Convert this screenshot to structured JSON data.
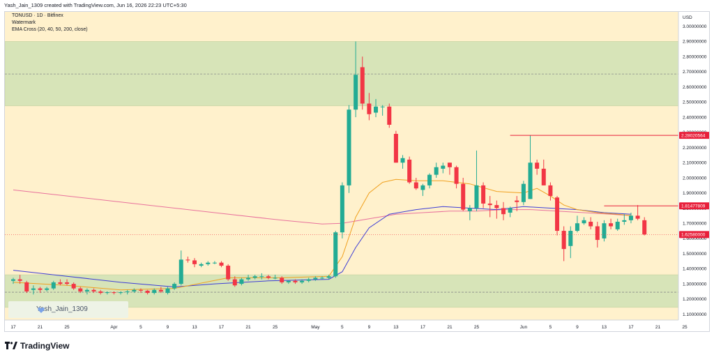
{
  "header": {
    "attribution": "Yash_Jain_1309 created with TradingView.com, Jun 16, 2026 22:23 UTC+5:30"
  },
  "legend": {
    "symbol_line": "TONUSD · 1D · Bitfinex",
    "watermark_line": "Watermark",
    "indicator_line": "EMA Cross (20, 40, 50, 200, close)"
  },
  "watermark": {
    "text": "Yash_Jain_1309"
  },
  "footer": {
    "brand": "TradingView"
  },
  "colors": {
    "up": "#22ab94",
    "down": "#f23645",
    "zone_fill": "#d7e4b8",
    "bg": "#fff1cc",
    "ema_short": "#f0a01e",
    "ema_mid": "#3d3dd6",
    "ema_long": "#e8709c",
    "level": "#e81f3a"
  },
  "chart_data": {
    "type": "candlestick",
    "title": "TONUSD · 1D · Bitfinex",
    "price_axis_label": "USD",
    "y_ticks": [
      "3.00000000",
      "2.90000000",
      "2.80000000",
      "2.70000000",
      "2.60000000",
      "2.50000000",
      "2.40000000",
      "2.30000000",
      "2.20000000",
      "2.10000000",
      "2.00000000",
      "1.90000000",
      "1.80000000",
      "1.70000000",
      "1.60000000",
      "1.50000000",
      "1.40000000",
      "1.30000000",
      "1.20000000",
      "1.10000000"
    ],
    "y_tick_values": [
      3.0,
      2.9,
      2.8,
      2.7,
      2.6,
      2.5,
      2.4,
      2.3,
      2.2,
      2.1,
      2.0,
      1.9,
      1.8,
      1.7,
      1.6,
      1.5,
      1.4,
      1.3,
      1.2,
      1.1
    ],
    "x_labels": [
      {
        "t": 0,
        "label": "17"
      },
      {
        "t": 4,
        "label": "21"
      },
      {
        "t": 8,
        "label": "25"
      },
      {
        "t": 15,
        "label": "Apr"
      },
      {
        "t": 19,
        "label": "5"
      },
      {
        "t": 23,
        "label": "9"
      },
      {
        "t": 27,
        "label": "13"
      },
      {
        "t": 31,
        "label": "17"
      },
      {
        "t": 35,
        "label": "21"
      },
      {
        "t": 39,
        "label": "25"
      },
      {
        "t": 45,
        "label": "May"
      },
      {
        "t": 49,
        "label": "5"
      },
      {
        "t": 53,
        "label": "9"
      },
      {
        "t": 57,
        "label": "13"
      },
      {
        "t": 61,
        "label": "17"
      },
      {
        "t": 65,
        "label": "21"
      },
      {
        "t": 69,
        "label": "25"
      },
      {
        "t": 76,
        "label": "Jun"
      },
      {
        "t": 80,
        "label": "5"
      },
      {
        "t": 84,
        "label": "9"
      },
      {
        "t": 88,
        "label": "13"
      },
      {
        "t": 92,
        "label": "17"
      },
      {
        "t": 96,
        "label": "21"
      },
      {
        "t": 100,
        "label": "25"
      }
    ],
    "zones": [
      {
        "low": 2.475,
        "high": 2.9
      },
      {
        "low": 1.145,
        "high": 1.36
      }
    ],
    "dashed_levels": [
      2.685,
      1.245
    ],
    "price_tags": [
      {
        "value": 2.28020564,
        "label": "2.28020564",
        "from_t": 74
      },
      {
        "value": 1.81477809,
        "label": "1.81477809",
        "from_t": 88
      },
      {
        "value": 1.6258,
        "label": "1.62580000",
        "from_t": null
      }
    ],
    "candles": [
      [
        1.32,
        1.34,
        1.3,
        1.33
      ],
      [
        1.33,
        1.36,
        1.3,
        1.32
      ],
      [
        1.31,
        1.32,
        1.24,
        1.25
      ],
      [
        1.26,
        1.29,
        1.23,
        1.27
      ],
      [
        1.27,
        1.28,
        1.24,
        1.26
      ],
      [
        1.26,
        1.28,
        1.25,
        1.27
      ],
      [
        1.27,
        1.32,
        1.26,
        1.31
      ],
      [
        1.31,
        1.33,
        1.29,
        1.3
      ],
      [
        1.31,
        1.33,
        1.29,
        1.3
      ],
      [
        1.3,
        1.31,
        1.26,
        1.27
      ],
      [
        1.27,
        1.28,
        1.24,
        1.25
      ],
      [
        1.25,
        1.27,
        1.23,
        1.26
      ],
      [
        1.26,
        1.27,
        1.24,
        1.25
      ],
      [
        1.25,
        1.26,
        1.23,
        1.24
      ],
      [
        1.24,
        1.25,
        1.23,
        1.245
      ],
      [
        1.245,
        1.25,
        1.23,
        1.24
      ],
      [
        1.24,
        1.25,
        1.23,
        1.245
      ],
      [
        1.245,
        1.26,
        1.23,
        1.25
      ],
      [
        1.25,
        1.27,
        1.24,
        1.26
      ],
      [
        1.26,
        1.27,
        1.24,
        1.255
      ],
      [
        1.255,
        1.26,
        1.23,
        1.24
      ],
      [
        1.24,
        1.27,
        1.23,
        1.26
      ],
      [
        1.26,
        1.28,
        1.24,
        1.25
      ],
      [
        1.24,
        1.28,
        1.23,
        1.27
      ],
      [
        1.27,
        1.31,
        1.26,
        1.3
      ],
      [
        1.3,
        1.52,
        1.29,
        1.46
      ],
      [
        1.46,
        1.48,
        1.44,
        1.455
      ],
      [
        1.455,
        1.47,
        1.41,
        1.43
      ],
      [
        1.42,
        1.44,
        1.41,
        1.43
      ],
      [
        1.43,
        1.45,
        1.42,
        1.44
      ],
      [
        1.44,
        1.45,
        1.43,
        1.44
      ],
      [
        1.44,
        1.45,
        1.41,
        1.42
      ],
      [
        1.42,
        1.43,
        1.32,
        1.33
      ],
      [
        1.33,
        1.35,
        1.28,
        1.29
      ],
      [
        1.3,
        1.34,
        1.29,
        1.33
      ],
      [
        1.33,
        1.36,
        1.32,
        1.34
      ],
      [
        1.34,
        1.36,
        1.33,
        1.35
      ],
      [
        1.35,
        1.37,
        1.33,
        1.35
      ],
      [
        1.35,
        1.36,
        1.33,
        1.34
      ],
      [
        1.34,
        1.36,
        1.33,
        1.34
      ],
      [
        1.34,
        1.35,
        1.3,
        1.31
      ],
      [
        1.31,
        1.32,
        1.3,
        1.32
      ],
      [
        1.32,
        1.33,
        1.3,
        1.31
      ],
      [
        1.31,
        1.33,
        1.3,
        1.32
      ],
      [
        1.32,
        1.34,
        1.31,
        1.33
      ],
      [
        1.33,
        1.35,
        1.32,
        1.34
      ],
      [
        1.34,
        1.35,
        1.33,
        1.34
      ],
      [
        1.34,
        1.36,
        1.33,
        1.35
      ],
      [
        1.35,
        1.65,
        1.34,
        1.64
      ],
      [
        1.64,
        1.97,
        1.6,
        1.95
      ],
      [
        1.95,
        2.48,
        1.9,
        2.45
      ],
      [
        2.45,
        2.9,
        2.4,
        2.68
      ],
      [
        2.73,
        2.8,
        2.45,
        2.49
      ],
      [
        2.49,
        2.56,
        2.38,
        2.42
      ],
      [
        2.43,
        2.52,
        2.4,
        2.47
      ],
      [
        2.47,
        2.48,
        2.41,
        2.47
      ],
      [
        2.47,
        2.49,
        2.33,
        2.35
      ],
      [
        2.29,
        2.31,
        2.1,
        2.1
      ],
      [
        2.1,
        2.15,
        2.06,
        2.13
      ],
      [
        2.12,
        2.14,
        1.96,
        1.97
      ],
      [
        1.97,
        2.0,
        1.92,
        1.93
      ],
      [
        1.92,
        1.96,
        1.88,
        1.95
      ],
      [
        1.95,
        2.03,
        1.93,
        2.02
      ],
      [
        2.02,
        2.1,
        2.0,
        2.07
      ],
      [
        2.06,
        2.1,
        2.03,
        2.08
      ],
      [
        2.1,
        2.1,
        2.02,
        2.07
      ],
      [
        2.07,
        2.08,
        1.93,
        1.96
      ],
      [
        1.96,
        2.0,
        1.78,
        1.79
      ],
      [
        1.78,
        1.82,
        1.72,
        1.8
      ],
      [
        1.8,
        2.18,
        1.78,
        1.95
      ],
      [
        1.95,
        1.97,
        1.8,
        1.83
      ],
      [
        1.83,
        1.88,
        1.74,
        1.82
      ],
      [
        1.82,
        1.85,
        1.73,
        1.8
      ],
      [
        1.8,
        1.84,
        1.72,
        1.76
      ],
      [
        1.77,
        1.81,
        1.74,
        1.8
      ],
      [
        1.85,
        1.88,
        1.78,
        1.84
      ],
      [
        1.84,
        1.98,
        1.82,
        1.96
      ],
      [
        1.86,
        2.28,
        1.86,
        2.1
      ],
      [
        2.1,
        2.12,
        2.02,
        2.06
      ],
      [
        2.06,
        2.12,
        1.95,
        1.95
      ],
      [
        1.95,
        1.97,
        1.85,
        1.88
      ],
      [
        1.87,
        1.88,
        1.62,
        1.65
      ],
      [
        1.65,
        1.68,
        1.45,
        1.53
      ],
      [
        1.55,
        1.68,
        1.47,
        1.65
      ],
      [
        1.65,
        1.75,
        1.64,
        1.7
      ],
      [
        1.7,
        1.74,
        1.69,
        1.72
      ],
      [
        1.71,
        1.74,
        1.66,
        1.68
      ],
      [
        1.68,
        1.71,
        1.54,
        1.59
      ],
      [
        1.6,
        1.72,
        1.58,
        1.7
      ],
      [
        1.7,
        1.73,
        1.66,
        1.68
      ],
      [
        1.66,
        1.73,
        1.65,
        1.71
      ],
      [
        1.71,
        1.76,
        1.69,
        1.72
      ],
      [
        1.72,
        1.77,
        1.7,
        1.75
      ],
      [
        1.75,
        1.82,
        1.72,
        1.73
      ],
      [
        1.72,
        1.74,
        1.62,
        1.626
      ]
    ],
    "ema_short": [
      [
        0,
        1.31
      ],
      [
        8,
        1.29
      ],
      [
        16,
        1.26
      ],
      [
        24,
        1.27
      ],
      [
        32,
        1.34
      ],
      [
        40,
        1.34
      ],
      [
        47,
        1.35
      ],
      [
        49,
        1.48
      ],
      [
        51,
        1.74
      ],
      [
        53,
        1.9
      ],
      [
        55,
        1.97
      ],
      [
        57,
        1.99
      ],
      [
        60,
        1.98
      ],
      [
        64,
        1.98
      ],
      [
        68,
        1.96
      ],
      [
        72,
        1.91
      ],
      [
        76,
        1.9
      ],
      [
        78,
        1.93
      ],
      [
        80,
        1.88
      ],
      [
        82,
        1.82
      ],
      [
        84,
        1.79
      ],
      [
        87,
        1.77
      ],
      [
        90,
        1.76
      ],
      [
        92,
        1.75
      ]
    ],
    "ema_mid": [
      [
        0,
        1.39
      ],
      [
        8,
        1.35
      ],
      [
        16,
        1.31
      ],
      [
        24,
        1.28
      ],
      [
        30,
        1.3
      ],
      [
        38,
        1.32
      ],
      [
        47,
        1.33
      ],
      [
        49,
        1.38
      ],
      [
        51,
        1.54
      ],
      [
        53,
        1.67
      ],
      [
        56,
        1.76
      ],
      [
        60,
        1.79
      ],
      [
        64,
        1.81
      ],
      [
        68,
        1.8
      ],
      [
        72,
        1.79
      ],
      [
        76,
        1.81
      ],
      [
        80,
        1.8
      ],
      [
        84,
        1.79
      ],
      [
        88,
        1.77
      ],
      [
        92,
        1.76
      ]
    ],
    "ema_long": [
      [
        0,
        1.92
      ],
      [
        10,
        1.87
      ],
      [
        20,
        1.82
      ],
      [
        30,
        1.77
      ],
      [
        40,
        1.72
      ],
      [
        46,
        1.695
      ],
      [
        49,
        1.7
      ],
      [
        53,
        1.73
      ],
      [
        57,
        1.76
      ],
      [
        61,
        1.77
      ],
      [
        65,
        1.78
      ],
      [
        69,
        1.78
      ],
      [
        73,
        1.79
      ],
      [
        77,
        1.79
      ],
      [
        81,
        1.78
      ],
      [
        85,
        1.77
      ],
      [
        89,
        1.76
      ],
      [
        92,
        1.75
      ]
    ]
  }
}
